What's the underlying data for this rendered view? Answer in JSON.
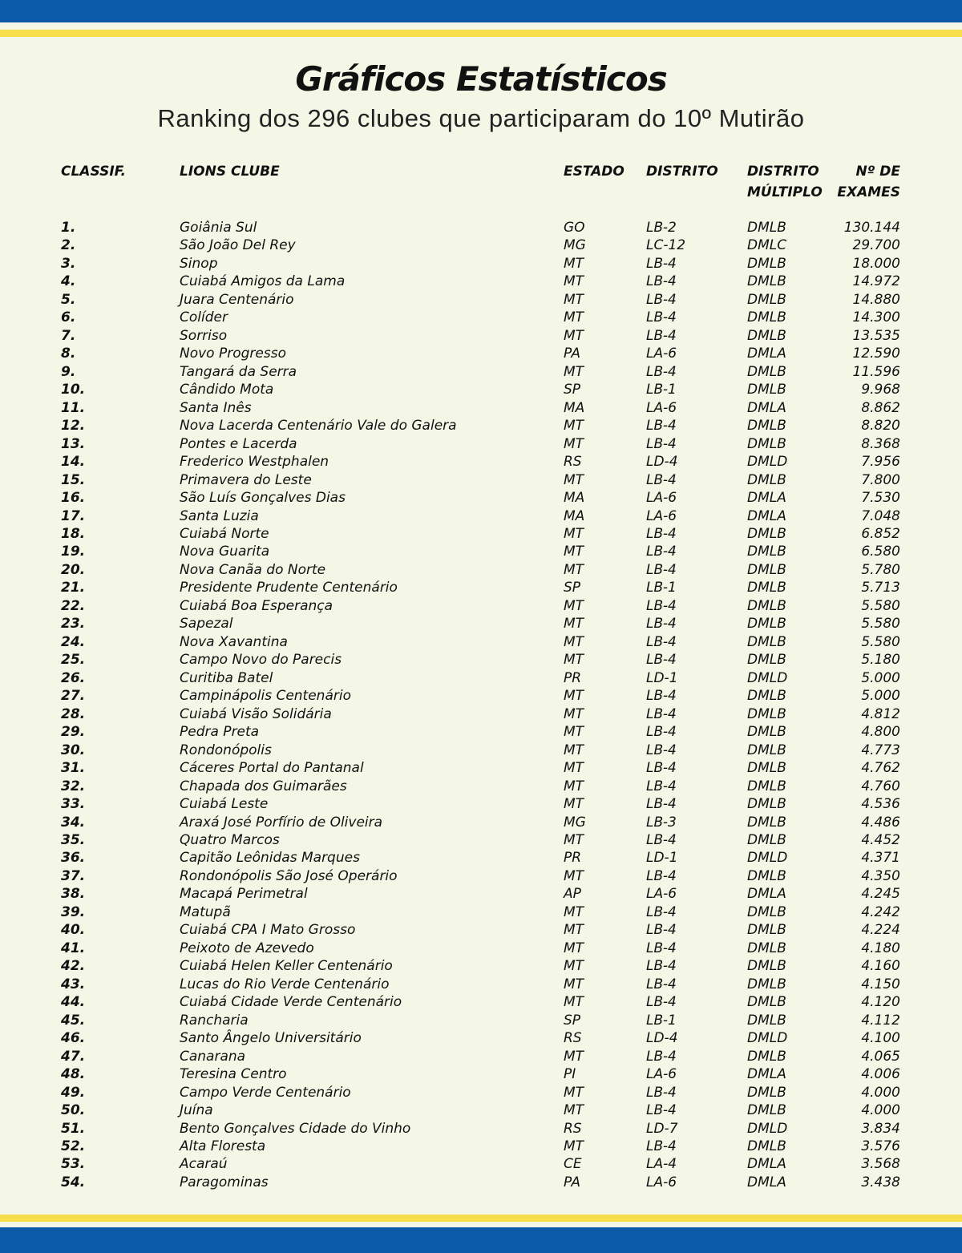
{
  "header": {
    "title": "Gráficos Estatísticos",
    "subtitle": "Ranking dos 296 clubes que participaram do 10º Mutirão"
  },
  "table": {
    "columns": [
      [
        "CLASSIF."
      ],
      [
        "LIONS CLUBE"
      ],
      [
        "ESTADO"
      ],
      [
        "DISTRITO"
      ],
      [
        "DISTRITO",
        "MÚLTIPLO"
      ],
      [
        "Nº DE",
        "EXAMES"
      ]
    ],
    "rows": [
      [
        "1.",
        "Goiânia Sul",
        "GO",
        "LB-2",
        "DMLB",
        "130.144"
      ],
      [
        "2.",
        "São João Del Rey",
        "MG",
        "LC-12",
        "DMLC",
        "29.700"
      ],
      [
        "3.",
        "Sinop",
        "MT",
        "LB-4",
        "DMLB",
        "18.000"
      ],
      [
        "4.",
        "Cuiabá Amigos da Lama",
        "MT",
        "LB-4",
        "DMLB",
        "14.972"
      ],
      [
        "5.",
        "Juara Centenário",
        "MT",
        "LB-4",
        "DMLB",
        "14.880"
      ],
      [
        "6.",
        "Colíder",
        "MT",
        "LB-4",
        "DMLB",
        "14.300"
      ],
      [
        "7.",
        "Sorriso",
        "MT",
        "LB-4",
        "DMLB",
        "13.535"
      ],
      [
        "8.",
        "Novo Progresso",
        "PA",
        "LA-6",
        "DMLA",
        "12.590"
      ],
      [
        "9.",
        "Tangará da Serra",
        "MT",
        "LB-4",
        "DMLB",
        "11.596"
      ],
      [
        "10.",
        "Cândido Mota",
        "SP",
        "LB-1",
        "DMLB",
        "9.968"
      ],
      [
        "11.",
        "Santa Inês",
        "MA",
        "LA-6",
        "DMLA",
        "8.862"
      ],
      [
        "12.",
        "Nova Lacerda Centenário Vale do Galera",
        "MT",
        "LB-4",
        "DMLB",
        "8.820"
      ],
      [
        "13.",
        "Pontes e Lacerda",
        "MT",
        "LB-4",
        "DMLB",
        "8.368"
      ],
      [
        "14.",
        "Frederico Westphalen",
        "RS",
        "LD-4",
        "DMLD",
        "7.956"
      ],
      [
        "15.",
        "Primavera do Leste",
        "MT",
        "LB-4",
        "DMLB",
        "7.800"
      ],
      [
        "16.",
        "São Luís Gonçalves Dias",
        "MA",
        "LA-6",
        "DMLA",
        "7.530"
      ],
      [
        "17.",
        "Santa Luzia",
        "MA",
        "LA-6",
        "DMLA",
        "7.048"
      ],
      [
        "18.",
        "Cuiabá Norte",
        "MT",
        "LB-4",
        "DMLB",
        "6.852"
      ],
      [
        "19.",
        "Nova Guarita",
        "MT",
        "LB-4",
        "DMLB",
        "6.580"
      ],
      [
        "20.",
        "Nova Canãa do Norte",
        "MT",
        "LB-4",
        "DMLB",
        "5.780"
      ],
      [
        "21.",
        "Presidente Prudente Centenário",
        "SP",
        "LB-1",
        "DMLB",
        "5.713"
      ],
      [
        "22.",
        "Cuiabá Boa Esperança",
        "MT",
        "LB-4",
        "DMLB",
        "5.580"
      ],
      [
        "23.",
        "Sapezal",
        "MT",
        "LB-4",
        "DMLB",
        "5.580"
      ],
      [
        "24.",
        "Nova Xavantina",
        "MT",
        "LB-4",
        "DMLB",
        "5.580"
      ],
      [
        "25.",
        "Campo Novo do Parecis",
        "MT",
        "LB-4",
        "DMLB",
        "5.180"
      ],
      [
        "26.",
        "Curitiba Batel",
        "PR",
        "LD-1",
        "DMLD",
        "5.000"
      ],
      [
        "27.",
        "Campinápolis Centenário",
        "MT",
        "LB-4",
        "DMLB",
        "5.000"
      ],
      [
        "28.",
        "Cuiabá Visão Solidária",
        "MT",
        "LB-4",
        "DMLB",
        "4.812"
      ],
      [
        "29.",
        "Pedra Preta",
        "MT",
        "LB-4",
        "DMLB",
        "4.800"
      ],
      [
        "30.",
        "Rondonópolis",
        "MT",
        "LB-4",
        "DMLB",
        "4.773"
      ],
      [
        "31.",
        "Cáceres Portal do Pantanal",
        "MT",
        "LB-4",
        "DMLB",
        "4.762"
      ],
      [
        "32.",
        "Chapada dos Guimarães",
        "MT",
        "LB-4",
        "DMLB",
        "4.760"
      ],
      [
        "33.",
        "Cuiabá Leste",
        "MT",
        "LB-4",
        "DMLB",
        "4.536"
      ],
      [
        "34.",
        "Araxá José Porfírio de Oliveira",
        "MG",
        "LB-3",
        "DMLB",
        "4.486"
      ],
      [
        "35.",
        "Quatro Marcos",
        "MT",
        "LB-4",
        "DMLB",
        "4.452"
      ],
      [
        "36.",
        "Capitão Leônidas Marques",
        "PR",
        "LD-1",
        "DMLD",
        "4.371"
      ],
      [
        "37.",
        "Rondonópolis São José Operário",
        "MT",
        "LB-4",
        "DMLB",
        "4.350"
      ],
      [
        "38.",
        "Macapá Perimetral",
        "AP",
        "LA-6",
        "DMLA",
        "4.245"
      ],
      [
        "39.",
        "Matupã",
        "MT",
        "LB-4",
        "DMLB",
        "4.242"
      ],
      [
        "40.",
        "Cuiabá CPA I Mato Grosso",
        "MT",
        "LB-4",
        "DMLB",
        "4.224"
      ],
      [
        "41.",
        "Peixoto de Azevedo",
        "MT",
        "LB-4",
        "DMLB",
        "4.180"
      ],
      [
        "42.",
        "Cuiabá Helen Keller Centenário",
        "MT",
        "LB-4",
        "DMLB",
        "4.160"
      ],
      [
        "43.",
        "Lucas do Rio Verde Centenário",
        "MT",
        "LB-4",
        "DMLB",
        "4.150"
      ],
      [
        "44.",
        "Cuiabá Cidade Verde Centenário",
        "MT",
        "LB-4",
        "DMLB",
        "4.120"
      ],
      [
        "45.",
        "Rancharia",
        "SP",
        "LB-1",
        "DMLB",
        "4.112"
      ],
      [
        "46.",
        "Santo Ângelo Universitário",
        "RS",
        "LD-4",
        "DMLD",
        "4.100"
      ],
      [
        "47.",
        "Canarana",
        "MT",
        "LB-4",
        "DMLB",
        "4.065"
      ],
      [
        "48.",
        "Teresina Centro",
        "PI",
        "LA-6",
        "DMLA",
        "4.006"
      ],
      [
        "49.",
        "Campo Verde Centenário",
        "MT",
        "LB-4",
        "DMLB",
        "4.000"
      ],
      [
        "50.",
        "Juína",
        "MT",
        "LB-4",
        "DMLB",
        "4.000"
      ],
      [
        "51.",
        "Bento Gonçalves Cidade do Vinho",
        "RS",
        "LD-7",
        "DMLD",
        "3.834"
      ],
      [
        "52.",
        "Alta Floresta",
        "MT",
        "LB-4",
        "DMLB",
        "3.576"
      ],
      [
        "53.",
        "Acaraú",
        "CE",
        "LA-4",
        "DMLA",
        "3.568"
      ],
      [
        "54.",
        "Paragominas",
        "PA",
        "LA-6",
        "DMLA",
        "3.438"
      ]
    ]
  }
}
